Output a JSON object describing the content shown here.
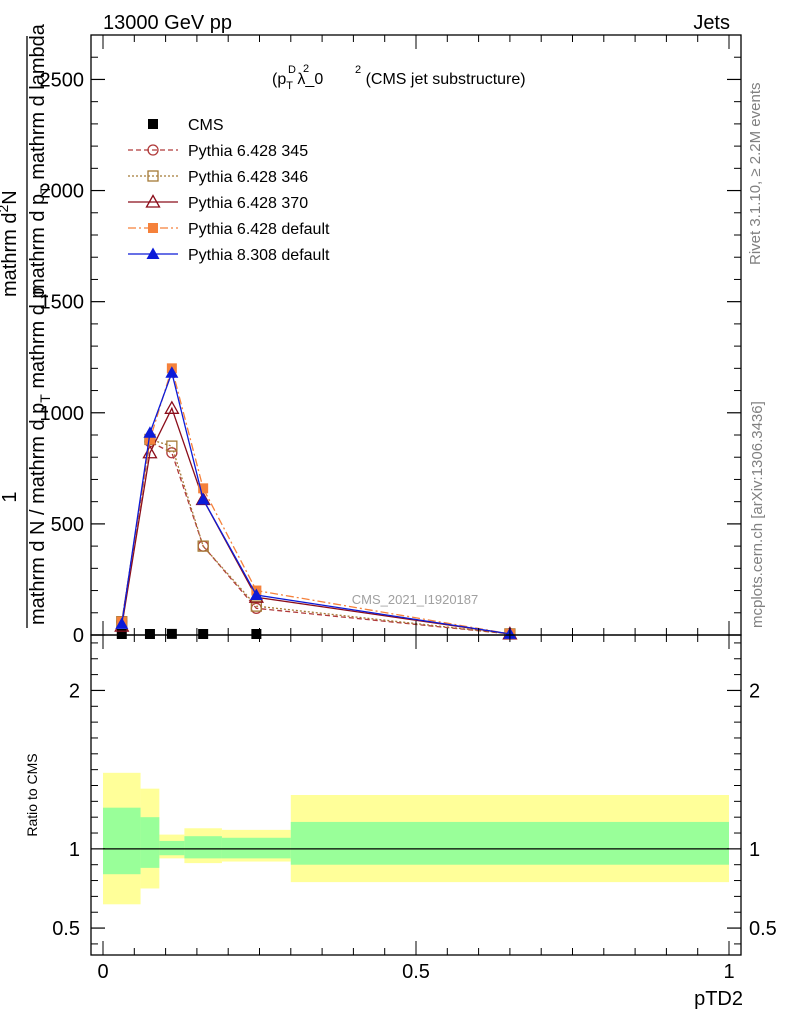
{
  "header": {
    "left": "13000 GeV pp",
    "right": "Jets"
  },
  "side_texts": {
    "rivet": "Rivet 3.1.10, ≥ 2.2M events",
    "mcplots": "mcplots.cern.ch [arXiv:1306.3436]"
  },
  "chart_data": [
    {
      "type": "line",
      "title_parts": {
        "base": "(p",
        "sub": "T",
        "sup_d": "D",
        "sup_2": "2",
        "rest": " λ_0",
        "rest_sup": "2",
        "tail": " (CMS jet substructure)"
      },
      "ylabel_parts": {
        "one": "1",
        "den": "mathrm d N / mathrm d p",
        "den_sub": "T",
        "den_tail": " mathrm d p",
        "num_top": "mathrm d",
        "num_sup": "2",
        "num_N": "N",
        "num_mid": "mathrm d p",
        "num_sub": "T",
        "num_tail": " mathrm d lambda"
      },
      "watermark": "CMS_2021_I1920187",
      "xlim": [
        0,
        1
      ],
      "ylim": [
        0,
        2700
      ],
      "yticks": [
        0,
        500,
        1000,
        1500,
        2000,
        2500
      ],
      "ytick_labels": [
        "0",
        "500",
        "1000",
        "1500",
        "2000",
        "2500"
      ],
      "legend_position": "top-left",
      "series": [
        {
          "name": "CMS",
          "color": "#000000",
          "marker": "square-filled",
          "dash": "",
          "x": [
            0.03,
            0.075,
            0.11,
            0.16,
            0.245
          ],
          "y": [
            0,
            0,
            5,
            2,
            2
          ]
        },
        {
          "name": "Pythia 6.428 345",
          "color": "#b03a3a",
          "marker": "circle-open",
          "dash": "5,3",
          "x": [
            0.03,
            0.075,
            0.11,
            0.16,
            0.245,
            0.65
          ],
          "y": [
            60,
            870,
            820,
            400,
            120,
            5
          ]
        },
        {
          "name": "Pythia 6.428 346",
          "color": "#a57a36",
          "marker": "square-open",
          "dash": "2,2",
          "x": [
            0.03,
            0.075,
            0.11,
            0.16,
            0.245,
            0.65
          ],
          "y": [
            60,
            880,
            850,
            400,
            130,
            5
          ]
        },
        {
          "name": "Pythia 6.428 370",
          "color": "#8b0d1a",
          "marker": "triangle-open",
          "dash": "",
          "x": [
            0.03,
            0.075,
            0.11,
            0.16,
            0.245,
            0.65
          ],
          "y": [
            40,
            820,
            1020,
            610,
            170,
            5
          ]
        },
        {
          "name": "Pythia 6.428 default",
          "color": "#f5813b",
          "marker": "square-filled",
          "dash": "8,3,2,3",
          "x": [
            0.03,
            0.075,
            0.11,
            0.16,
            0.245,
            0.65
          ],
          "y": [
            60,
            880,
            1200,
            660,
            200,
            5
          ]
        },
        {
          "name": "Pythia 8.308 default",
          "color": "#0c1bd8",
          "marker": "triangle-filled",
          "dash": "",
          "x": [
            0.03,
            0.075,
            0.11,
            0.16,
            0.245,
            0.65
          ],
          "y": [
            50,
            910,
            1180,
            610,
            180,
            5
          ]
        }
      ]
    },
    {
      "type": "area",
      "ylabel": "Ratio to CMS",
      "xlabel": "pTD2",
      "xlim": [
        0,
        1
      ],
      "ylim": [
        0.33,
        2.35
      ],
      "xticks": [
        0,
        0.5,
        1
      ],
      "xtick_labels": [
        "0",
        "0.5",
        "1"
      ],
      "yticks": [
        0.5,
        1,
        2
      ],
      "ytick_labels": [
        "0.5",
        "1",
        "2"
      ],
      "reference_line": 1,
      "bands": [
        {
          "x0": 0.0,
          "x1": 0.06,
          "inner": [
            0.84,
            1.26
          ],
          "outer": [
            0.65,
            1.48
          ]
        },
        {
          "x0": 0.06,
          "x1": 0.09,
          "inner": [
            0.88,
            1.2
          ],
          "outer": [
            0.75,
            1.38
          ]
        },
        {
          "x0": 0.09,
          "x1": 0.13,
          "inner": [
            0.96,
            1.05
          ],
          "outer": [
            0.94,
            1.09
          ]
        },
        {
          "x0": 0.13,
          "x1": 0.19,
          "inner": [
            0.94,
            1.08
          ],
          "outer": [
            0.91,
            1.13
          ]
        },
        {
          "x0": 0.19,
          "x1": 0.3,
          "inner": [
            0.94,
            1.07
          ],
          "outer": [
            0.92,
            1.12
          ]
        },
        {
          "x0": 0.3,
          "x1": 1.0,
          "inner": [
            0.9,
            1.17
          ],
          "outer": [
            0.79,
            1.34
          ]
        }
      ],
      "inner_color": "#99ff99",
      "outer_color": "#ffff99"
    }
  ]
}
